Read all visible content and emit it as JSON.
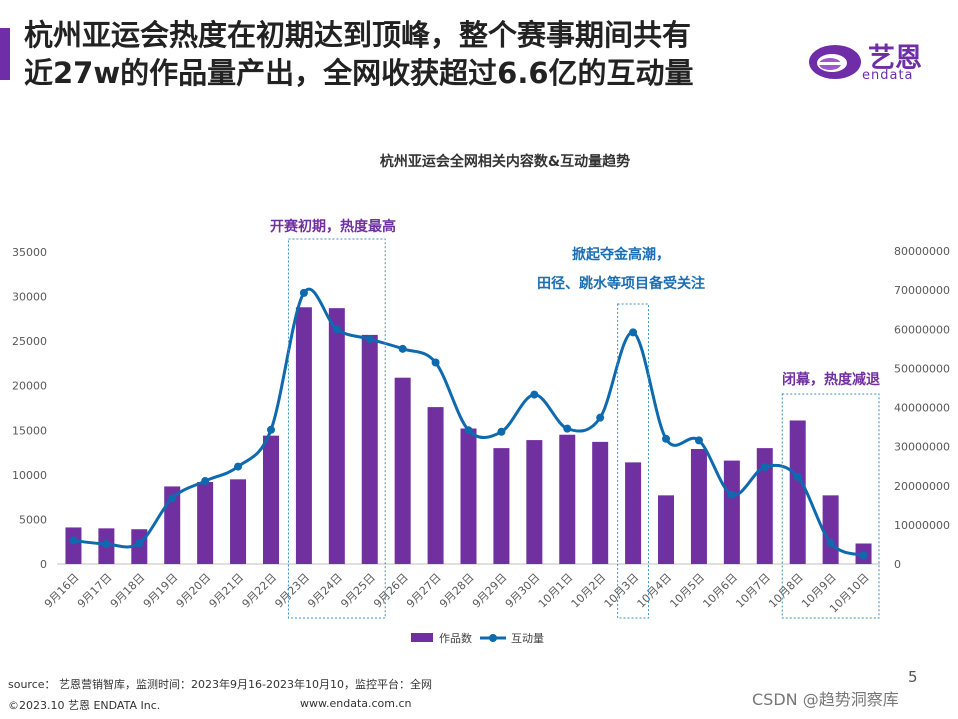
{
  "headline": {
    "line1": "杭州亚运会热度在初期达到顶峰，整个赛事期间共有",
    "line2": "近27w的作品量产出，全网收获超过6.6亿的互动量"
  },
  "logo": {
    "name_cn": "艺恩",
    "name_en": "endata"
  },
  "colors": {
    "accent": "#6f2da8",
    "bar": "#7030a0",
    "line": "#0e6aae",
    "annotation_purple": "#7030a0",
    "annotation_blue": "#1a6fb5"
  },
  "chart_data": {
    "type": "bar+line",
    "title": "杭州亚运会全网相关内容数&互动量趋势",
    "categories": [
      "9月16日",
      "9月17日",
      "9月18日",
      "9月19日",
      "9月20日",
      "9月21日",
      "9月22日",
      "9月23日",
      "9月24日",
      "9月25日",
      "9月26日",
      "9月27日",
      "9月28日",
      "9月29日",
      "9月30日",
      "10月1日",
      "10月2日",
      "10月3日",
      "10月4日",
      "10月5日",
      "10月6日",
      "10月7日",
      "10月8日",
      "10月9日",
      "10月10日"
    ],
    "series": [
      {
        "name": "作品数",
        "type": "bar",
        "axis": "left",
        "values": [
          4100,
          4000,
          3900,
          8700,
          9200,
          9500,
          14400,
          28800,
          28700,
          25700,
          20900,
          17600,
          15200,
          13000,
          13900,
          14500,
          13700,
          11400,
          7700,
          12900,
          11600,
          13000,
          16100,
          7700,
          2300
        ]
      },
      {
        "name": "互动量",
        "type": "line",
        "axis": "right",
        "values": [
          6000000,
          5100000,
          5300000,
          16800000,
          21200000,
          24900000,
          34300000,
          69300000,
          60000000,
          57500000,
          55000000,
          51500000,
          34200000,
          33800000,
          43300000,
          34600000,
          37400000,
          59200000,
          32000000,
          31600000,
          17700000,
          24800000,
          22300000,
          5400000,
          2200000
        ]
      }
    ],
    "y_left": {
      "min": 0,
      "max": 35000,
      "ticks": [
        "0",
        "5000",
        "10000",
        "15000",
        "20000",
        "25000",
        "30000",
        "35000"
      ]
    },
    "y_right": {
      "min": 0,
      "max": 80000000,
      "ticks": [
        "0",
        "10000000",
        "20000000",
        "30000000",
        "40000000",
        "50000000",
        "60000000",
        "70000000",
        "80000000"
      ]
    },
    "legend": {
      "position": "bottom",
      "labels": [
        "作品数",
        "互动量"
      ]
    },
    "annotations": [
      {
        "text": "开赛初期，热度最高",
        "color": "purple"
      },
      {
        "text": "掀起夺金高潮，",
        "color": "blue"
      },
      {
        "text": "田径、跳水等项目备受关注",
        "color": "blue"
      },
      {
        "text": "闭幕，热度减退",
        "color": "purple"
      }
    ]
  },
  "footer": {
    "source": "source： 艺恩营销智库，监测时间：2023年9月16-2023年10月10，监控平台：全网",
    "copyright": "©2023.10  艺恩 ENDATA Inc.",
    "website": "www.endata.com.cn",
    "page": "5",
    "watermark": "CSDN @趋势洞察库"
  }
}
